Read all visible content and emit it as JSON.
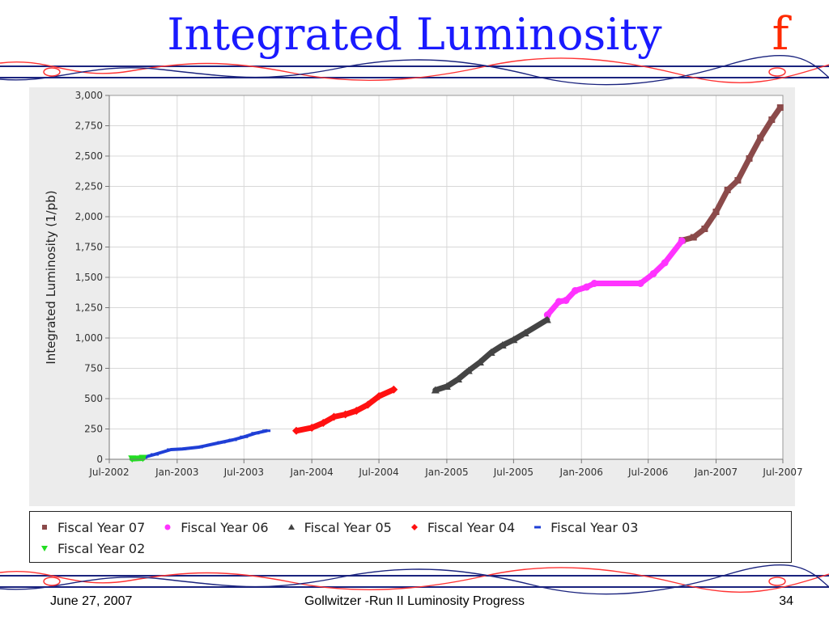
{
  "slide": {
    "title": "Integrated Luminosity",
    "logo_text": "f",
    "footer": {
      "date": "June 27, 2007",
      "center": "Gollwitzer -Run II Luminosity Progress",
      "page": "34"
    }
  },
  "colors": {
    "title": "#1a1aff",
    "logo": "#ff2a00",
    "fy07": "#8b4a4a",
    "fy06": "#ff33ff",
    "fy05": "#444444",
    "fy04": "#ff1010",
    "fy03": "#1f3fd6",
    "fy02": "#22dd22",
    "rule_blue": "#1a237e",
    "rule_red": "#ff3333"
  },
  "chart_data": {
    "type": "scatter",
    "title": "",
    "xlabel": "",
    "ylabel": "Integrated Luminosity (1/pb)",
    "ylim": [
      0,
      3000
    ],
    "yticks": [
      "0",
      "250",
      "500",
      "750",
      "1,000",
      "1,250",
      "1,500",
      "1,750",
      "2,000",
      "2,250",
      "2,500",
      "2,750",
      "3,000"
    ],
    "ytick_values": [
      0,
      250,
      500,
      750,
      1000,
      1250,
      1500,
      1750,
      2000,
      2250,
      2500,
      2750,
      3000
    ],
    "xlim": [
      "2002-07-01",
      "2007-07-01"
    ],
    "xticks": [
      "Jul-2002",
      "Jan-2003",
      "Jul-2003",
      "Jan-2004",
      "Jul-2004",
      "Jan-2005",
      "Jul-2005",
      "Jan-2006",
      "Jul-2006",
      "Jan-2007",
      "Jul-2007"
    ],
    "xtick_dates": [
      "2002-07-01",
      "2003-01-01",
      "2003-07-01",
      "2004-01-01",
      "2004-07-01",
      "2005-01-01",
      "2005-07-01",
      "2006-01-01",
      "2006-07-01",
      "2007-01-01",
      "2007-07-01"
    ],
    "grid": true,
    "legend_position": "bottom",
    "series": [
      {
        "name": "Fiscal Year 07",
        "marker": "square",
        "color": "#8b4a4a",
        "points": [
          [
            "2006-10-01",
            1805
          ],
          [
            "2006-11-01",
            1830
          ],
          [
            "2006-12-01",
            1900
          ],
          [
            "2007-01-01",
            2040
          ],
          [
            "2007-02-01",
            2220
          ],
          [
            "2007-03-01",
            2300
          ],
          [
            "2007-04-01",
            2480
          ],
          [
            "2007-05-01",
            2650
          ],
          [
            "2007-06-01",
            2800
          ],
          [
            "2007-06-24",
            2900
          ]
        ]
      },
      {
        "name": "Fiscal Year 06",
        "marker": "circle",
        "color": "#ff33ff",
        "points": [
          [
            "2005-10-01",
            1190
          ],
          [
            "2005-11-01",
            1300
          ],
          [
            "2005-11-20",
            1310
          ],
          [
            "2005-12-15",
            1390
          ],
          [
            "2006-01-15",
            1420
          ],
          [
            "2006-02-05",
            1450
          ],
          [
            "2006-06-10",
            1450
          ],
          [
            "2006-07-15",
            1530
          ],
          [
            "2006-08-15",
            1620
          ],
          [
            "2006-09-30",
            1800
          ]
        ]
      },
      {
        "name": "Fiscal Year 05",
        "marker": "triangle",
        "color": "#444444",
        "points": [
          [
            "2004-12-01",
            570
          ],
          [
            "2005-01-01",
            600
          ],
          [
            "2005-02-01",
            660
          ],
          [
            "2005-03-01",
            730
          ],
          [
            "2005-04-01",
            800
          ],
          [
            "2005-05-01",
            880
          ],
          [
            "2005-06-01",
            940
          ],
          [
            "2005-07-01",
            985
          ],
          [
            "2005-08-01",
            1040
          ],
          [
            "2005-09-30",
            1150
          ]
        ]
      },
      {
        "name": "Fiscal Year 04",
        "marker": "diamond",
        "color": "#ff1010",
        "points": [
          [
            "2003-11-20",
            235
          ],
          [
            "2004-01-01",
            260
          ],
          [
            "2004-02-01",
            300
          ],
          [
            "2004-03-01",
            350
          ],
          [
            "2004-04-01",
            370
          ],
          [
            "2004-05-01",
            400
          ],
          [
            "2004-06-01",
            450
          ],
          [
            "2004-07-01",
            520
          ],
          [
            "2004-08-10",
            575
          ]
        ]
      },
      {
        "name": "Fiscal Year 03",
        "marker": "dash",
        "color": "#1f3fd6",
        "points": [
          [
            "2002-10-01",
            15
          ],
          [
            "2002-11-01",
            40
          ],
          [
            "2002-12-15",
            80
          ],
          [
            "2003-01-15",
            85
          ],
          [
            "2003-03-01",
            100
          ],
          [
            "2003-05-01",
            140
          ],
          [
            "2003-06-01",
            160
          ],
          [
            "2003-07-01",
            185
          ],
          [
            "2003-08-01",
            215
          ],
          [
            "2003-08-31",
            235
          ]
        ]
      },
      {
        "name": "Fiscal Year 02",
        "marker": "triangle-down",
        "color": "#22dd22",
        "points": [
          [
            "2002-09-01",
            5
          ],
          [
            "2002-09-30",
            10
          ]
        ]
      }
    ]
  }
}
